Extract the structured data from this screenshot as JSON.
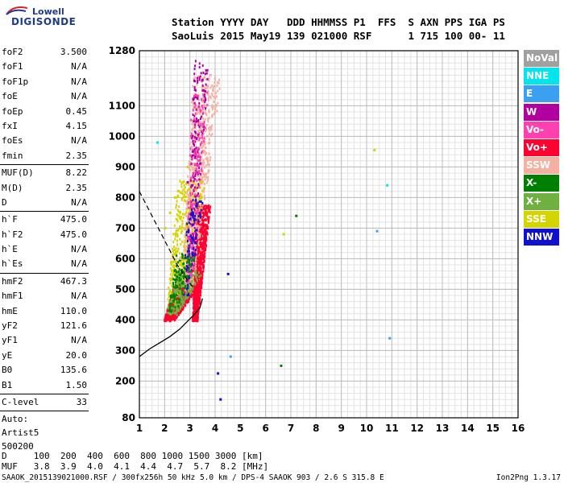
{
  "logo": {
    "line1": "Lowell",
    "line2": "DIGISONDE"
  },
  "header": {
    "line1": "Station YYYY DAY   DDD HHMMSS P1  FFS  S AXN PPS IGA PS",
    "line2": "SaoLuis 2015 May19 139 021000 RSF      1 715 100 00- 11"
  },
  "params": {
    "group1": [
      {
        "k": "foF2",
        "v": "3.500"
      },
      {
        "k": "foF1",
        "v": "N/A"
      },
      {
        "k": "foF1p",
        "v": "N/A"
      },
      {
        "k": "foE",
        "v": "N/A"
      },
      {
        "k": "foEp",
        "v": "0.45"
      },
      {
        "k": "fxI",
        "v": "4.15"
      },
      {
        "k": "foEs",
        "v": "N/A"
      },
      {
        "k": "fmin",
        "v": "2.35"
      }
    ],
    "group2": [
      {
        "k": "MUF(D)",
        "v": "8.22"
      },
      {
        "k": "M(D)",
        "v": "2.35"
      },
      {
        "k": "D",
        "v": "N/A"
      }
    ],
    "group3": [
      {
        "k": "h`F",
        "v": "475.0"
      },
      {
        "k": "h`F2",
        "v": "475.0"
      },
      {
        "k": "h`E",
        "v": "N/A"
      },
      {
        "k": "h`Es",
        "v": "N/A"
      }
    ],
    "group4": [
      {
        "k": "hmF2",
        "v": "467.3"
      },
      {
        "k": "hmF1",
        "v": "N/A"
      },
      {
        "k": "hmE",
        "v": "110.0"
      },
      {
        "k": "yF2",
        "v": "121.6"
      },
      {
        "k": "yF1",
        "v": "N/A"
      },
      {
        "k": "yE",
        "v": "20.0"
      },
      {
        "k": "B0",
        "v": "135.6"
      },
      {
        "k": "B1",
        "v": "1.50"
      }
    ],
    "group5": [
      {
        "k": "C-level",
        "v": "33"
      }
    ],
    "auto": [
      "Auto:",
      "Artist5",
      "500200"
    ]
  },
  "legend": [
    {
      "label": "NoVal",
      "color": "#a0a0a0"
    },
    {
      "label": "NNE",
      "color": "#00e5ee"
    },
    {
      "label": "E",
      "color": "#3ca0f0"
    },
    {
      "label": "W",
      "color": "#b000a0"
    },
    {
      "label": "Vo-",
      "color": "#ff40b0"
    },
    {
      "label": "Vo+",
      "color": "#ff0030"
    },
    {
      "label": "SSW",
      "color": "#f4b0a0"
    },
    {
      "label": "X-",
      "color": "#008000"
    },
    {
      "label": "X+",
      "color": "#70b040"
    },
    {
      "label": "SSE",
      "color": "#d4d400"
    },
    {
      "label": "NNW",
      "color": "#1010d0"
    }
  ],
  "footer": {
    "line1": "D     100  200  400  600  800 1000 1500 3000 [km]",
    "line2": "MUF   3.8  3.9  4.0  4.1  4.4  4.7  5.7  8.2 [MHz]",
    "line3": "SAAOK_2015139021000.RSF / 300fx256h 50 kHz 5.0 km / DPS-4 SAAOK 903 / 2.6 S 315.8 E",
    "version": "Ion2Png 1.3.17"
  },
  "chart_data": {
    "type": "scatter",
    "xlim": [
      1,
      16
    ],
    "ylim": [
      80,
      1280
    ],
    "xticks": [
      1,
      2,
      3,
      4,
      5,
      6,
      7,
      8,
      9,
      10,
      11,
      12,
      13,
      14,
      15,
      16
    ],
    "yticks": [
      80,
      200,
      300,
      400,
      500,
      600,
      700,
      800,
      900,
      1000,
      1100,
      1280
    ],
    "grid": true,
    "legend_placement": "right",
    "profile_curve": {
      "x": [
        1.0,
        1.4,
        1.8,
        2.2,
        2.6,
        2.9,
        3.2,
        3.4,
        3.5
      ],
      "y": [
        280,
        305,
        325,
        345,
        370,
        395,
        420,
        440,
        470
      ]
    },
    "dashed_curve": {
      "x": [
        1.0,
        1.5,
        2.0,
        2.5,
        2.9,
        3.2
      ],
      "y": [
        820,
        740,
        660,
        580,
        530,
        500
      ]
    },
    "trace_clusters": [
      {
        "series": "Vo+",
        "points": [
          [
            2.1,
            430
          ],
          [
            2.3,
            450
          ],
          [
            2.5,
            470
          ],
          [
            2.7,
            500
          ],
          [
            2.9,
            530
          ],
          [
            3.1,
            560
          ],
          [
            3.3,
            600
          ],
          [
            3.4,
            650
          ],
          [
            3.45,
            700
          ],
          [
            3.5,
            750
          ]
        ]
      },
      {
        "series": "SSW",
        "points": [
          [
            2.6,
            600
          ],
          [
            2.8,
            700
          ],
          [
            3.0,
            800
          ],
          [
            3.2,
            900
          ],
          [
            3.4,
            1000
          ],
          [
            3.6,
            1100
          ],
          [
            3.8,
            1200
          ]
        ]
      },
      {
        "series": "SSE",
        "points": [
          [
            2.0,
            700
          ],
          [
            2.2,
            750
          ],
          [
            2.4,
            800
          ],
          [
            2.7,
            850
          ],
          [
            2.9,
            900
          ]
        ]
      },
      {
        "series": "X+",
        "points": [
          [
            2.2,
            460
          ],
          [
            2.6,
            490
          ],
          [
            3.0,
            520
          ],
          [
            3.2,
            560
          ]
        ]
      },
      {
        "series": "W",
        "points": [
          [
            2.9,
            850
          ],
          [
            3.1,
            950
          ],
          [
            3.3,
            1050
          ],
          [
            3.5,
            1150
          ]
        ]
      },
      {
        "series": "NNE",
        "points": [
          [
            1.7,
            980
          ],
          [
            10.8,
            840
          ]
        ]
      },
      {
        "series": "E",
        "points": [
          [
            4.6,
            280
          ],
          [
            10.4,
            690
          ],
          [
            10.9,
            340
          ]
        ]
      },
      {
        "series": "NNW",
        "points": [
          [
            4.1,
            225
          ],
          [
            4.2,
            140
          ],
          [
            4.5,
            550
          ]
        ]
      },
      {
        "series": "X-",
        "points": [
          [
            6.6,
            250
          ],
          [
            7.2,
            740
          ]
        ]
      },
      {
        "series": "SSE",
        "points": [
          [
            6.7,
            680
          ],
          [
            10.3,
            955
          ]
        ]
      }
    ]
  }
}
